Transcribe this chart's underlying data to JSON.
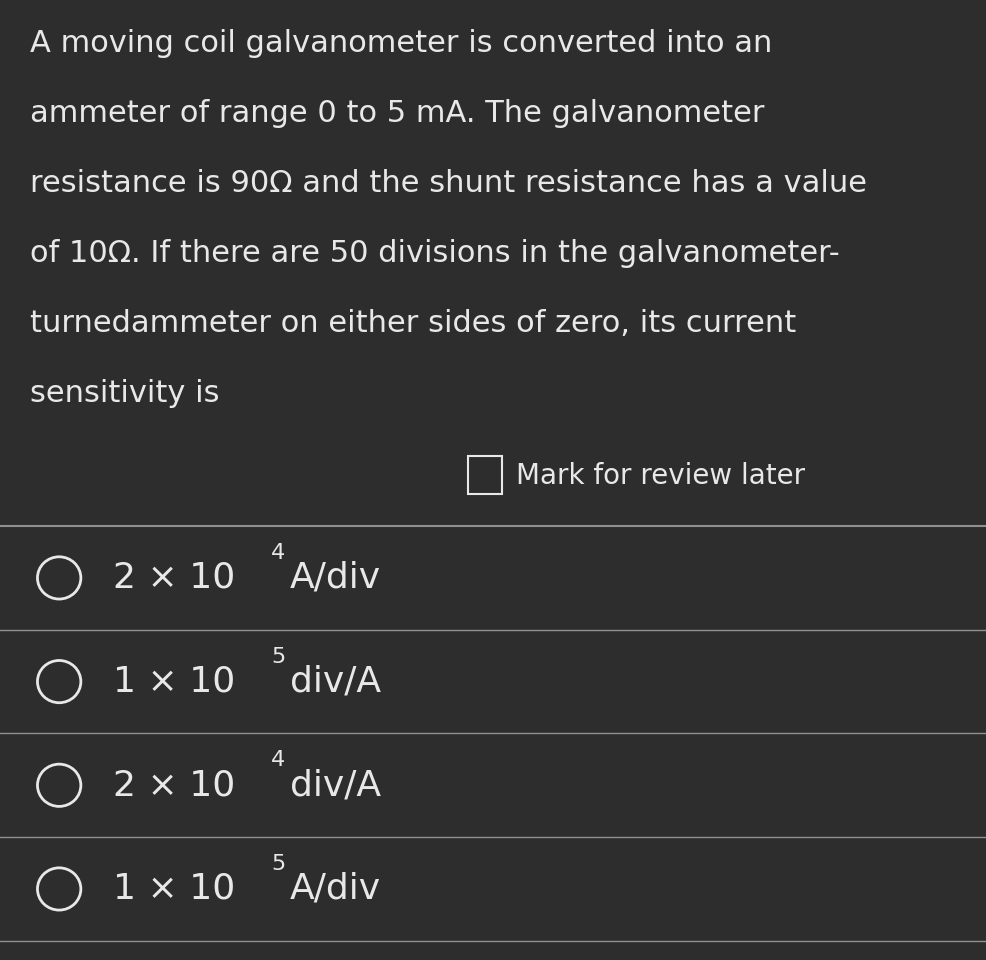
{
  "background_color": "#2d2d2d",
  "text_color": "#e8e8e8",
  "divider_color": "#909090",
  "question_text_lines": [
    "A moving coil galvanometer is converted into an",
    "ammeter of range 0 to 5 mA. The galvanometer",
    "resistance is 90Ω and the shunt resistance has a value",
    "of 10Ω. If there are 50 divisions in the galvanometer-",
    "turnedammeter on either sides of zero, its current",
    "sensitivity is"
  ],
  "mark_for_review_text": "Mark for review later",
  "options": [
    {
      "label": "2 × 10",
      "exp": "4",
      "suffix": "A/div"
    },
    {
      "label": "1 × 10",
      "exp": "5",
      "suffix": "div/A"
    },
    {
      "label": "2 × 10",
      "exp": "4",
      "suffix": "div/A"
    },
    {
      "label": "1 × 10",
      "exp": "5",
      "suffix": "A/div"
    }
  ],
  "question_font_size": 22,
  "option_font_size": 26,
  "mark_review_font_size": 20,
  "fig_width": 9.86,
  "fig_height": 9.6
}
